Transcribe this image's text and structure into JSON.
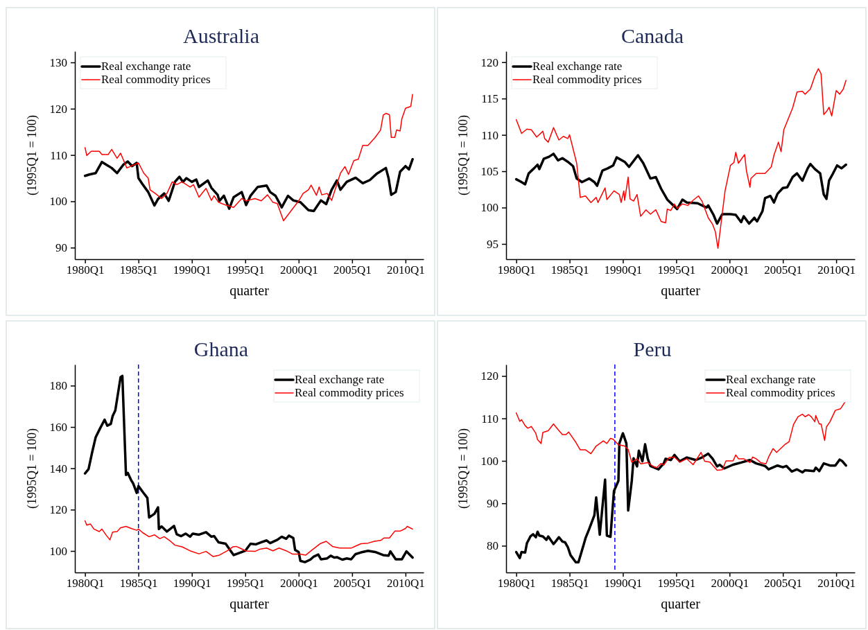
{
  "chart_data": [
    {
      "type": "line",
      "title": "Australia",
      "xlabel": "quarter",
      "ylabel": "(1995Q1 = 100)",
      "legend": "top left",
      "xlim": [
        "1979-01-19",
        "2011-09-12"
      ],
      "ylim": [
        87.5,
        132.4
      ],
      "xticks": [
        {
          "value": "1980-01",
          "label": "1980Q1"
        },
        {
          "value": "1985-01",
          "label": "1985Q1"
        },
        {
          "value": "1990-01",
          "label": "1990Q1"
        },
        {
          "value": "1995-01",
          "label": "1995Q1"
        },
        {
          "value": "2000-01",
          "label": "2000Q1"
        },
        {
          "value": "2005-01",
          "label": "2005Q1"
        },
        {
          "value": "2010-01",
          "label": "2010Q1"
        }
      ],
      "yticks": [
        90,
        100,
        110,
        120,
        130
      ],
      "series": [
        {
          "name": "Real exchange rate",
          "color": "#000000",
          "x": [
            "1980-01",
            "1980-06",
            "1981-01",
            "1981-08",
            "1982-01",
            "1982-07",
            "1983-01",
            "1983-08",
            "1984-01",
            "1984-06",
            "1984-11",
            "1985-01",
            "1985-06",
            "1985-12",
            "1986-07",
            "1986-11",
            "1987-06",
            "1987-11",
            "1988-06",
            "1988-11",
            "1989-03",
            "1989-07",
            "1990-01",
            "1990-06",
            "1990-09",
            "1991-07",
            "1991-11",
            "1992-06",
            "1992-08",
            "1993-01",
            "1993-07",
            "1993-12",
            "1994-09",
            "1995-02",
            "1995-07",
            "1996-03",
            "1997-01",
            "1997-05",
            "1997-11",
            "1998-06",
            "1999-01",
            "1999-07",
            "2000-03",
            "2000-12",
            "2001-06",
            "2002-02",
            "2002-08",
            "2003-02",
            "2003-08",
            "2003-12",
            "2004-07",
            "2005-05",
            "2006-01",
            "2006-09",
            "2007-05",
            "2008-03",
            "2008-06",
            "2008-09",
            "2009-02",
            "2009-07",
            "2010-01",
            "2010-05",
            "2010-09"
          ],
          "values": [
            105.5,
            105.8,
            106.1,
            108.5,
            107.9,
            107.2,
            106.1,
            107.9,
            108.6,
            107.6,
            108.3,
            105,
            103.6,
            102,
            99.1,
            100.5,
            101.7,
            100.1,
            104.2,
            105.3,
            104.2,
            105,
            104.2,
            104.7,
            103.1,
            104.5,
            102.9,
            101.4,
            100.1,
            101.2,
            98.4,
            100.9,
            102,
            99.2,
            101.2,
            103.1,
            103.4,
            102,
            101.2,
            98.7,
            101.2,
            100.2,
            99.8,
            98.1,
            97.9,
            100.2,
            99.4,
            102.5,
            104.5,
            102.5,
            104.2,
            105.1,
            103.9,
            104.6,
            106,
            107.2,
            105,
            101.4,
            102,
            106.4,
            107.6,
            106.9,
            109.1
          ]
        },
        {
          "name": "Real commodity prices",
          "color": "#ff0000",
          "x": [
            "1980-01",
            "1980-03",
            "1980-08",
            "1981-05",
            "1981-08",
            "1982-03",
            "1982-07",
            "1983-01",
            "1983-05",
            "1983-12",
            "1985-01",
            "1985-07",
            "1985-12",
            "1986-02",
            "1986-08",
            "1987-03",
            "1987-09",
            "1988-03",
            "1988-08",
            "1989-02",
            "1989-11",
            "1990-03",
            "1990-09",
            "1991-05",
            "1991-11",
            "1992-02",
            "1992-07",
            "1993-03",
            "1993-12",
            "1994-09",
            "1995-02",
            "1995-12",
            "1996-07",
            "1997-02",
            "1997-08",
            "1998-01",
            "1998-08",
            "2000-01",
            "2000-06",
            "2000-12",
            "2001-03",
            "2001-09",
            "2001-12",
            "2002-03",
            "2002-09",
            "2003-02",
            "2003-12",
            "2004-05",
            "2004-09",
            "2005-03",
            "2005-08",
            "2006-01",
            "2006-07",
            "2007-03",
            "2007-09",
            "2007-12",
            "2008-03",
            "2008-07",
            "2008-09",
            "2009-01",
            "2009-03",
            "2009-07",
            "2009-09",
            "2010-01",
            "2010-07",
            "2010-09"
          ],
          "values": [
            111.6,
            109.9,
            110.8,
            110.8,
            110.1,
            110.1,
            111.2,
            109.3,
            110.4,
            107.2,
            108.3,
            106.1,
            105,
            102.5,
            101.7,
            100.6,
            101.7,
            104.2,
            103.6,
            104.2,
            103.1,
            103.6,
            100.9,
            102.8,
            100.2,
            101.2,
            99.8,
            99.2,
            98.7,
            100.6,
            100.1,
            100.6,
            100.1,
            101.4,
            99.8,
            99.5,
            95.8,
            100.1,
            101.7,
            102.5,
            103.5,
            101.3,
            103.1,
            101.4,
            101.7,
            100.2,
            106.1,
            107.5,
            105.8,
            108.8,
            109.1,
            112.1,
            112.1,
            113.8,
            115.4,
            118.6,
            119,
            118.7,
            113.8,
            113.8,
            115.4,
            115.2,
            117.9,
            120.1,
            120.5,
            123.1
          ]
        }
      ]
    },
    {
      "type": "line",
      "title": "Canada",
      "xlabel": "quarter",
      "ylabel": "(1995Q1 = 100)",
      "legend": "top left",
      "xlim": [
        "1979-01-19",
        "2011-10-01"
      ],
      "ylim": [
        92.9,
        121.5
      ],
      "xticks": [
        {
          "value": "1980-01",
          "label": "1980Q1"
        },
        {
          "value": "1985-01",
          "label": "1985Q1"
        },
        {
          "value": "1990-01",
          "label": "1990Q1"
        },
        {
          "value": "1995-01",
          "label": "1995Q1"
        },
        {
          "value": "2000-01",
          "label": "2000Q1"
        },
        {
          "value": "2005-01",
          "label": "2005Q1"
        },
        {
          "value": "2010-01",
          "label": "2010Q1"
        }
      ],
      "yticks": [
        95,
        100,
        105,
        110,
        115,
        120
      ],
      "series": [
        {
          "name": "Real exchange rate",
          "color": "#000000",
          "x": [
            "1980-01",
            "1980-07",
            "1980-11",
            "1981-03",
            "1981-09",
            "1982-01",
            "1982-03",
            "1982-08",
            "1983-02",
            "1983-07",
            "1983-12",
            "1984-05",
            "1984-11",
            "1985-05",
            "1985-09",
            "1986-03",
            "1986-11",
            "1987-05",
            "1987-08",
            "1988-02",
            "1988-08",
            "1989-02",
            "1989-06",
            "1990-03",
            "1990-08",
            "1991-06",
            "1991-12",
            "1992-08",
            "1993-02",
            "1993-08",
            "1994-03",
            "1995-02",
            "1995-08",
            "1996-01",
            "1997-01",
            "1997-11",
            "1998-01",
            "1998-07",
            "1998-11",
            "1999-05",
            "2000-02",
            "2000-08",
            "2001-02",
            "2001-05",
            "2001-11",
            "2002-05",
            "2002-08",
            "2003-02",
            "2003-05",
            "2003-11",
            "2004-03",
            "2004-07",
            "2005-01",
            "2005-06",
            "2005-12",
            "2006-05",
            "2006-11",
            "2007-05",
            "2007-08",
            "2008-01",
            "2008-07",
            "2008-11",
            "2009-02",
            "2009-05",
            "2009-09",
            "2010-02",
            "2010-07",
            "2010-12"
          ],
          "values": [
            103.9,
            103.5,
            103.2,
            104.7,
            105.4,
            105.9,
            105.3,
            106.7,
            107,
            107.4,
            106.5,
            106.8,
            106.3,
            105.7,
            104,
            103.5,
            104,
            103.5,
            103,
            105.1,
            105.4,
            105.8,
            106.9,
            106.3,
            105.6,
            107.2,
            106.1,
            104,
            104.2,
            102.6,
            101.1,
            99.8,
            101.1,
            100.7,
            100.6,
            100,
            100.3,
            99,
            97.8,
            99.1,
            99.1,
            99,
            98,
            98.8,
            97.8,
            98.6,
            98.1,
            99.5,
            101.3,
            101.6,
            100.7,
            101.9,
            102.7,
            102.8,
            104.2,
            104.7,
            103.7,
            105.4,
            106,
            105.3,
            104.7,
            101.8,
            101.2,
            103.7,
            104.6,
            105.8,
            105.4,
            105.9
          ]
        },
        {
          "name": "Real commodity prices",
          "color": "#ff0000",
          "x": [
            "1980-01",
            "1980-07",
            "1981-01",
            "1981-06",
            "1981-12",
            "1982-07",
            "1982-09",
            "1983-01",
            "1983-07",
            "1984-01",
            "1984-06",
            "1984-11",
            "1985-01",
            "1985-09",
            "1986-01",
            "1986-07",
            "1987-01",
            "1987-07",
            "1987-09",
            "1988-05",
            "1988-07",
            "1989-03",
            "1989-09",
            "1989-11",
            "1990-02",
            "1990-03",
            "1990-07",
            "1990-09",
            "1991-01",
            "1991-05",
            "1991-09",
            "1992-03",
            "1992-08",
            "1993-02",
            "1993-08",
            "1994-01",
            "1994-03",
            "1994-07",
            "1994-11",
            "1995-02",
            "1995-08",
            "1996-02",
            "1996-08",
            "1997-02",
            "1997-06",
            "1998-01",
            "1998-06",
            "1998-09",
            "1998-12",
            "1999-08",
            "2000-02",
            "2000-06",
            "2000-08",
            "2000-11",
            "2001-06",
            "2001-08",
            "2001-12",
            "2002-01",
            "2002-07",
            "2003-05",
            "2003-12",
            "2004-03",
            "2004-08",
            "2004-11",
            "2005-02",
            "2005-12",
            "2006-05",
            "2006-11",
            "2007-02",
            "2007-08",
            "2008-01",
            "2008-05",
            "2008-08",
            "2008-11",
            "2009-02",
            "2009-05",
            "2009-08",
            "2010-01",
            "2010-05",
            "2010-09",
            "2010-12"
          ],
          "values": [
            112.1,
            110.2,
            110.8,
            110.7,
            109.7,
            110.5,
            109.5,
            109,
            111,
            109.3,
            109.8,
            109.5,
            110,
            106.1,
            101.4,
            101.6,
            100.7,
            101.4,
            100.7,
            102.7,
            101.1,
            102.3,
            101.8,
            100.7,
            102.3,
            101,
            104.2,
            101.2,
            100.9,
            101.8,
            98.8,
            99.7,
            99.1,
            99.7,
            98.1,
            97.9,
            99.8,
            99.6,
            100.5,
            99.9,
            100.5,
            100.3,
            101,
            101.6,
            100.9,
            98.6,
            97.7,
            96.7,
            94.4,
            102.3,
            105.8,
            106.2,
            107.6,
            106.1,
            107.3,
            105.1,
            102.8,
            104,
            104.7,
            104.7,
            105.6,
            107.2,
            109,
            107.7,
            110.7,
            113.7,
            115.9,
            116,
            115.6,
            116.3,
            118.1,
            119.1,
            118.4,
            112.8,
            113.2,
            113.8,
            112.6,
            116.1,
            115.6,
            116.3,
            117.5
          ]
        }
      ]
    },
    {
      "type": "line",
      "title": "Ghana",
      "xlabel": "quarter",
      "ylabel": "(1995Q1 = 100)",
      "legend": "top right",
      "xlim": [
        "1979-01-19",
        "2011-09-12"
      ],
      "ylim": [
        89.6,
        190.2
      ],
      "xticks": [
        {
          "value": "1980-01",
          "label": "1980Q1"
        },
        {
          "value": "1985-01",
          "label": "1985Q1"
        },
        {
          "value": "1990-01",
          "label": "1990Q1"
        },
        {
          "value": "1995-01",
          "label": "1995Q1"
        },
        {
          "value": "2000-01",
          "label": "2000Q1"
        },
        {
          "value": "2005-01",
          "label": "2005Q1"
        },
        {
          "value": "2010-01",
          "label": "2010Q1"
        }
      ],
      "yticks": [
        100,
        120,
        140,
        160,
        180
      ],
      "ref_lines": [
        {
          "axis": "x",
          "value": "1985-01",
          "color": "#0000ff",
          "line_style": "dashed"
        }
      ],
      "series": [
        {
          "name": "Real exchange rate",
          "color": "#000000",
          "x": [
            "1980-01",
            "1980-05",
            "1980-09",
            "1981-01",
            "1981-06",
            "1981-11",
            "1982-02",
            "1982-06",
            "1982-08",
            "1982-11",
            "1983-05",
            "1983-07",
            "1983-11",
            "1984-01",
            "1984-05",
            "1984-07",
            "1984-11",
            "1985-01",
            "1985-06",
            "1985-11",
            "1986-01",
            "1986-07",
            "1986-11",
            "1986-12",
            "1987-03",
            "1987-09",
            "1988-05",
            "1988-08",
            "1989-01",
            "1989-06",
            "1989-11",
            "1990-02",
            "1990-09",
            "1991-05",
            "1991-11",
            "1992-02",
            "1992-07",
            "1993-03",
            "1993-12",
            "1995-01",
            "1995-07",
            "1996-01",
            "1996-07",
            "1997-01",
            "1997-05",
            "1998-01",
            "1998-06",
            "1998-11",
            "1999-02",
            "1999-07",
            "1999-09",
            "2000-01",
            "2000-03",
            "2000-08",
            "2001-02",
            "2001-06",
            "2001-11",
            "2002-02",
            "2002-09",
            "2003-01",
            "2003-05",
            "2003-08",
            "2004-02",
            "2004-07",
            "2004-12",
            "2005-05",
            "2005-11",
            "2006-07",
            "2007-03",
            "2007-12",
            "2008-06",
            "2008-08",
            "2009-02",
            "2009-09",
            "2010-02",
            "2010-09"
          ],
          "values": [
            137.5,
            139.6,
            147.7,
            155.1,
            159.4,
            163.5,
            160.6,
            161.5,
            165.2,
            168,
            184.1,
            184.7,
            136.8,
            137.8,
            134.1,
            132.8,
            128.1,
            131.4,
            128.5,
            125.7,
            116.2,
            118,
            121.1,
            110.6,
            111.9,
            109.4,
            112.1,
            108.1,
            107.2,
            108.4,
            106.9,
            108.4,
            107.9,
            109.1,
            106.9,
            107.2,
            104.2,
            103.5,
            98,
            100.1,
            103.5,
            103.2,
            104.2,
            105.1,
            103.8,
            105.4,
            106.9,
            105.9,
            107.4,
            106.3,
            100.5,
            99.5,
            95.2,
            94.6,
            95.8,
            97.3,
            98.3,
            96,
            96.4,
            97.7,
            96.8,
            97,
            95.8,
            96.4,
            96,
            98.5,
            99.3,
            100.1,
            99.5,
            98,
            97.7,
            99.8,
            96,
            96,
            99.8,
            96.8
          ]
        },
        {
          "name": "Real commodity prices",
          "color": "#ff0000",
          "x": [
            "1980-01",
            "1980-03",
            "1980-07",
            "1980-11",
            "1981-05",
            "1981-08",
            "1982-01",
            "1982-05",
            "1982-08",
            "1983-01",
            "1983-05",
            "1983-11",
            "1984-05",
            "1984-11",
            "1985-01",
            "1985-06",
            "1986-01",
            "1986-07",
            "1987-01",
            "1987-06",
            "1987-12",
            "1988-06",
            "1989-02",
            "1989-11",
            "1990-09",
            "1991-05",
            "1992-01",
            "1992-08",
            "1993-05",
            "1993-11",
            "1994-03",
            "1994-09",
            "1995-02",
            "1995-12",
            "1996-05",
            "1997-01",
            "1997-08",
            "1998-03",
            "1998-11",
            "1999-06",
            "2000-03",
            "2000-09",
            "2001-03",
            "2002-01",
            "2002-08",
            "2003-03",
            "2003-11",
            "2004-12",
            "2005-11",
            "2006-07",
            "2007-02",
            "2007-09",
            "2008-01",
            "2008-07",
            "2009-01",
            "2009-07",
            "2010-01",
            "2010-03",
            "2010-09"
          ],
          "values": [
            114.6,
            112.5,
            113.1,
            110.6,
            109.4,
            110.6,
            107.5,
            105.4,
            109.1,
            109.4,
            111.2,
            111.9,
            110.9,
            110,
            110.6,
            108.8,
            106.9,
            107.8,
            106,
            106.9,
            105.1,
            102.8,
            102,
            100.1,
            98.6,
            99.8,
            97.3,
            98,
            100.1,
            102,
            102.2,
            101,
            100,
            99.8,
            100.8,
            101.4,
            100.1,
            101.4,
            100.1,
            98.5,
            98.5,
            98,
            100.1,
            103.5,
            104.7,
            102.2,
            101.4,
            101.4,
            103.5,
            103.8,
            104.7,
            105.1,
            106.3,
            106.3,
            109.6,
            109.6,
            110.9,
            111.9,
            110.6
          ]
        }
      ]
    },
    {
      "type": "line",
      "title": "Peru",
      "xlabel": "quarter",
      "ylabel": "(1995Q1 = 100)",
      "legend": "top right",
      "xlim": [
        "1979-01-19",
        "2011-10-01"
      ],
      "ylim": [
        73.7,
        122.7
      ],
      "xticks": [
        {
          "value": "1980-01",
          "label": "1980Q1"
        },
        {
          "value": "1985-01",
          "label": "1985Q1"
        },
        {
          "value": "1990-01",
          "label": "1990Q1"
        },
        {
          "value": "1995-01",
          "label": "1995Q1"
        },
        {
          "value": "2000-01",
          "label": "2000Q1"
        },
        {
          "value": "2005-01",
          "label": "2005Q1"
        },
        {
          "value": "2010-01",
          "label": "2010Q1"
        }
      ],
      "yticks": [
        80,
        90,
        100,
        110,
        120
      ],
      "ref_lines": [
        {
          "axis": "x",
          "value": "1989-04",
          "color": "#0000ff",
          "line_style": "dashed"
        }
      ],
      "series": [
        {
          "name": "Real exchange rate",
          "color": "#000000",
          "x": [
            "1980-01",
            "1980-05",
            "1980-07",
            "1980-11",
            "1981-01",
            "1981-05",
            "1981-08",
            "1981-11",
            "1982-01",
            "1982-03",
            "1982-07",
            "1982-11",
            "1983-01",
            "1983-07",
            "1983-09",
            "1984-01",
            "1984-05",
            "1984-08",
            "1984-11",
            "1985-02",
            "1985-08",
            "1985-11",
            "1986-05",
            "1986-07",
            "1986-11",
            "1987-05",
            "1987-07",
            "1987-11",
            "1988-05",
            "1988-07",
            "1988-11",
            "1989-03",
            "1989-08",
            "1989-09",
            "1990-01",
            "1990-05",
            "1990-07",
            "1990-11",
            "1991-01",
            "1991-05",
            "1991-07",
            "1991-11",
            "1992-02",
            "1992-05",
            "1992-08",
            "1993-05",
            "1993-11",
            "1994-01",
            "1994-07",
            "1994-11",
            "1995-05",
            "1996-01",
            "1996-11",
            "1997-06",
            "1998-01",
            "1998-06",
            "1998-11",
            "1999-02",
            "1999-07",
            "2000-05",
            "2001-02",
            "2001-12",
            "2002-07",
            "2003-05",
            "2003-09",
            "2004-07",
            "2005-01",
            "2005-05",
            "2005-11",
            "2006-05",
            "2006-11",
            "2007-02",
            "2007-12",
            "2008-02",
            "2008-06",
            "2008-11",
            "2009-06",
            "2009-12",
            "2010-05",
            "2010-08",
            "2010-12"
          ],
          "values": [
            78.5,
            77.1,
            78.5,
            78.4,
            80.6,
            82.2,
            82.7,
            82,
            83.3,
            82.4,
            82.2,
            81.4,
            82.2,
            80.4,
            80.9,
            82,
            81,
            80.8,
            79.7,
            77.8,
            76.1,
            76.1,
            80.3,
            81.8,
            83.9,
            87.2,
            91.4,
            82.6,
            95.6,
            82.4,
            82.1,
            92.9,
            95.3,
            104.1,
            106.5,
            104.1,
            88.3,
            95.3,
            100.6,
            98.7,
            102.4,
            99.9,
            103.9,
            100.5,
            98.8,
            98,
            99.4,
            100.5,
            100.2,
            101.4,
            99.9,
            100.8,
            100.2,
            100.8,
            101.7,
            100.5,
            98.7,
            99.1,
            98.2,
            99.1,
            99.6,
            100.2,
            99.4,
            98.8,
            98,
            98.9,
            98.5,
            98.8,
            97.5,
            98,
            97.3,
            97.8,
            97.6,
            98.4,
            97.6,
            99.4,
            98.9,
            98.9,
            100.3,
            99.9,
            98.9
          ]
        },
        {
          "name": "Real commodity prices",
          "color": "#ff0000",
          "x": [
            "1980-01",
            "1980-05",
            "1980-07",
            "1980-11",
            "1981-02",
            "1981-06",
            "1981-11",
            "1982-01",
            "1982-05",
            "1982-07",
            "1983-01",
            "1983-07",
            "1983-12",
            "1984-05",
            "1984-09",
            "1984-12",
            "1985-08",
            "1986-01",
            "1986-07",
            "1987-01",
            "1987-07",
            "1987-11",
            "1988-03",
            "1988-07",
            "1988-11",
            "1989-02",
            "1989-08",
            "1990-03",
            "1990-07",
            "1990-11",
            "1991-05",
            "1991-09",
            "1992-05",
            "1992-11",
            "1993-03",
            "1993-08",
            "1993-11",
            "1994-05",
            "1994-11",
            "1995-05",
            "1996-01",
            "1996-08",
            "1997-05",
            "1997-09",
            "1998-03",
            "1998-11",
            "1999-05",
            "1999-09",
            "2000-05",
            "2000-08",
            "2000-11",
            "2001-05",
            "2001-12",
            "2002-03",
            "2002-07",
            "2002-12",
            "2003-06",
            "2003-09",
            "2004-02",
            "2004-06",
            "2004-09",
            "2005-03",
            "2005-08",
            "2006-01",
            "2006-06",
            "2006-11",
            "2007-02",
            "2007-06",
            "2007-09",
            "2008-01",
            "2008-02",
            "2008-06",
            "2008-08",
            "2008-12",
            "2009-02",
            "2009-06",
            "2009-12",
            "2010-06",
            "2010-11"
          ],
          "values": [
            111.3,
            109.3,
            109.7,
            108.3,
            107.7,
            108.1,
            106.5,
            105,
            104.1,
            106.7,
            107.1,
            108.7,
            107.4,
            106.2,
            106.2,
            106.8,
            104.4,
            102.6,
            102.6,
            101.7,
            103.5,
            104.1,
            104.7,
            104.1,
            105.3,
            105.1,
            103.8,
            103.5,
            102.7,
            99.7,
            100.5,
            99.3,
            99.6,
            98.7,
            98.4,
            99.4,
            99,
            100.8,
            100.9,
            99.7,
            100.5,
            99.1,
            102,
            99.9,
            99.7,
            97.8,
            97.9,
            100,
            100,
            101.4,
            100.5,
            100.5,
            99.6,
            100.9,
            100.5,
            99.6,
            99.3,
            100.9,
            102.9,
            102,
            102.6,
            103.8,
            104.5,
            108.6,
            110.4,
            111,
            110.4,
            110.9,
            110.4,
            109.2,
            110.7,
            108.7,
            108.7,
            104.8,
            108,
            109.2,
            111.9,
            112.3,
            113.9
          ]
        }
      ]
    }
  ]
}
